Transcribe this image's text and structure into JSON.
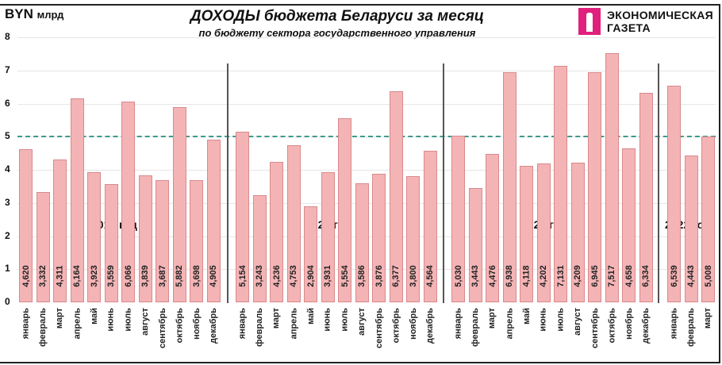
{
  "header": {
    "unit_main": "BYN",
    "unit_sub": "млрд",
    "title": "ДОХОДЫ бюджета Беларуси за месяц",
    "subtitle": "по бюджету сектора государственного управления",
    "logo_line1": "ЭКОНОМИЧЕСКАЯ",
    "logo_line2": "ГАЗЕТА",
    "logo_color": "#e0207c"
  },
  "colors": {
    "bar": "#f4b4b6",
    "bar_border": "#d88a8c",
    "reference_line": "#3f9a8c"
  },
  "chart_data": {
    "type": "bar",
    "title": "ДОХОДЫ бюджета Беларуси за месяц",
    "subtitle": "по бюджету сектора государственного управления",
    "ylabel": "BYN млрд",
    "ylim": [
      0,
      8
    ],
    "yticks": [
      0,
      1,
      2,
      3,
      4,
      5,
      6,
      7,
      8
    ],
    "grid": true,
    "reference_line": 5,
    "groups": [
      {
        "label": "2019 год",
        "categories": [
          "январь",
          "февраль",
          "март",
          "апрель",
          "май",
          "июнь",
          "июль",
          "август",
          "сентябрь",
          "октябрь",
          "ноябрь",
          "декабрь"
        ],
        "values": [
          4.62,
          3.332,
          4.311,
          6.164,
          3.923,
          3.559,
          6.066,
          3.839,
          3.687,
          5.882,
          3.698,
          4.905
        ],
        "labels": [
          "4,620",
          "3,332",
          "4,311",
          "6,164",
          "3,923",
          "3,559",
          "6,066",
          "3,839",
          "3,687",
          "5,882",
          "3,698",
          "4,905"
        ]
      },
      {
        "label": "2020 год",
        "categories": [
          "январь",
          "февраль",
          "март",
          "апрель",
          "май",
          "июнь",
          "июль",
          "август",
          "сентябрь",
          "октябрь",
          "ноябрь",
          "декабрь"
        ],
        "values": [
          5.154,
          3.243,
          4.236,
          4.753,
          2.904,
          3.931,
          5.554,
          3.586,
          3.876,
          6.377,
          3.8,
          4.564
        ],
        "labels": [
          "5,154",
          "3,243",
          "4,236",
          "4,753",
          "2,904",
          "3,931",
          "5,554",
          "3,586",
          "3,876",
          "6,377",
          "3,800",
          "4,564"
        ]
      },
      {
        "label": "2021 год",
        "categories": [
          "январь",
          "февраль",
          "март",
          "апрель",
          "май",
          "июнь",
          "июль",
          "август",
          "сентябрь",
          "октябрь",
          "ноябрь",
          "декабрь"
        ],
        "values": [
          5.03,
          3.443,
          4.476,
          6.938,
          4.118,
          4.202,
          7.131,
          4.209,
          6.945,
          7.517,
          4.658,
          6.334
        ],
        "labels": [
          "5,030",
          "3,443",
          "4,476",
          "6,938",
          "4,118",
          "4,202",
          "7,131",
          "4,209",
          "6,945",
          "7,517",
          "4,658",
          "6,334"
        ]
      },
      {
        "label": "2022 год",
        "categories": [
          "январь",
          "февраль",
          "март"
        ],
        "values": [
          6.539,
          4.443,
          5.008
        ],
        "labels": [
          "6,539",
          "4,443",
          "5,008"
        ]
      }
    ]
  }
}
